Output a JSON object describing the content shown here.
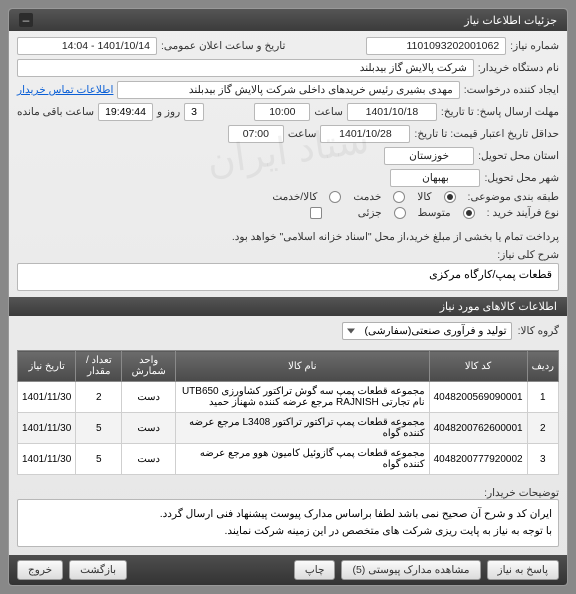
{
  "header": {
    "title": "جزئیات اطلاعات نیاز"
  },
  "fields": {
    "need_no_label": "شماره نیاز:",
    "need_no": "1101093202001062",
    "announce_label": "تاریخ و ساعت اعلان عمومی:",
    "announce": "1401/10/14 - 14:04",
    "buyer_label": "نام دستگاه خریدار:",
    "buyer": "شرکت پالایش گاز بیدبلند",
    "creator_label": "ایجاد کننده درخواست:",
    "creator": "مهدی بشیری رئیس خریدهای داخلی شرکت پالایش گاز بیدبلند",
    "contact_link": "اطلاعات تماس خریدار",
    "deadline_label": "مهلت ارسال پاسخ: تا تاریخ:",
    "deadline_date": "1401/10/18",
    "time_label": "ساعت",
    "deadline_time": "10:00",
    "remaining_label": "ساعت باقی مانده",
    "remaining_days": "3",
    "day_and": "روز و",
    "remaining_time": "19:49:44",
    "validity_label": "حداقل تاریخ اعتبار قیمت: تا تاریخ:",
    "validity_date": "1401/10/28",
    "validity_time": "07:00",
    "province_label": "استان محل تحویل:",
    "province": "خوزستان",
    "city_label": "شهر محل تحویل:",
    "city": "بهبهان",
    "class_label": "طبقه بندی موضوعی:",
    "class_goods": "کالا",
    "class_service": "خدمت",
    "class_both": "کالا/خدمت",
    "buy_type_label": "نوع فرآیند خرید :",
    "buy_type_mid": "متوسط",
    "buy_type_small": "جزئی",
    "payment_note": "پرداخت تمام یا بخشی از مبلغ خرید،از محل \"اسناد خزانه اسلامی\" خواهد بود.",
    "desc_label": "شرح کلی نیاز:",
    "desc": "قطعات پمپ/کارگاه مرکزی"
  },
  "sub_header": "اطلاعات کالاهای مورد نیاز",
  "group": {
    "label": "گروه کالا:",
    "value": "تولید و فرآوری صنعتی(سفارشی)"
  },
  "table": {
    "columns": [
      "ردیف",
      "کد کالا",
      "نام کالا",
      "واحد شمارش",
      "تعداد / مقدار",
      "تاریخ نیاز"
    ],
    "rows": [
      [
        "1",
        "4048200569090001",
        "مجموعه قطعات پمپ سه گوش تراکتور کشاورزی UTB650 نام تجارتی RAJNISH مرجع عرضه کننده شهناز حمید",
        "دست",
        "2",
        "1401/11/30"
      ],
      [
        "2",
        "4048200762600001",
        "مجموعه قطعات پمپ تراکتور تراکتور L3408 مرجع عرضه کننده گواه",
        "دست",
        "5",
        "1401/11/30"
      ],
      [
        "3",
        "4048200777920002",
        "مجموعه قطعات پمپ گازوئیل کامیون هوو مرجع عرضه کننده گواه",
        "دست",
        "5",
        "1401/11/30"
      ]
    ]
  },
  "notes": {
    "label": "توضیحات خریدار:",
    "text": "ایران کد و شرح آن صحیح نمی باشد لطفا براساس مدارک پیوست پیشنهاد فنی ارسال گردد.\nبا توجه به نیاز به پایت ریزی شرکت های متخصص در این زمینه شرکت نمایند."
  },
  "buttons": {
    "reply": "پاسخ به نیاز",
    "attachments": "مشاهده مدارک پیوستی (5)",
    "print": "چاپ",
    "back": "بازگشت",
    "exit": "خروج"
  },
  "watermark": "ستاد ایران"
}
